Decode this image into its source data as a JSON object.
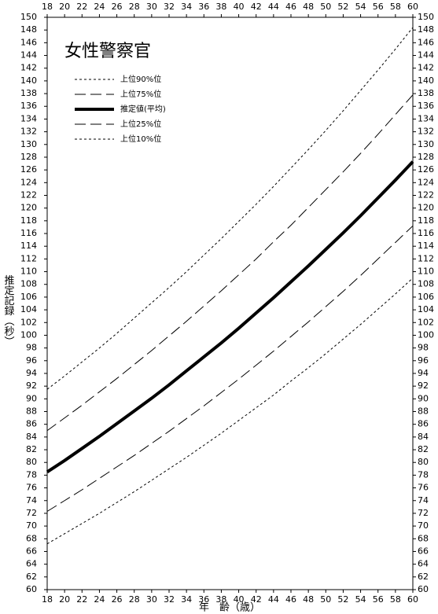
{
  "chart_data": {
    "type": "line",
    "title": "女性警察官",
    "x_label": "年　齢（歳）",
    "y_label": "推定記録（秒）",
    "x": [
      18,
      20,
      22,
      24,
      26,
      28,
      30,
      32,
      34,
      36,
      38,
      40,
      42,
      44,
      46,
      48,
      50,
      52,
      54,
      56,
      58,
      60
    ],
    "xlim": [
      18,
      60
    ],
    "xticks": [
      18,
      20,
      22,
      24,
      26,
      28,
      30,
      32,
      34,
      36,
      38,
      40,
      42,
      44,
      46,
      48,
      50,
      52,
      54,
      56,
      58,
      60
    ],
    "ylim": [
      60,
      150
    ],
    "yticks": [
      60,
      62,
      64,
      66,
      68,
      70,
      72,
      74,
      76,
      78,
      80,
      82,
      84,
      86,
      88,
      90,
      92,
      94,
      96,
      98,
      100,
      102,
      104,
      106,
      108,
      110,
      112,
      114,
      116,
      118,
      120,
      122,
      124,
      126,
      128,
      130,
      132,
      134,
      136,
      138,
      140,
      142,
      144,
      146,
      148,
      150
    ],
    "series": [
      {
        "name": "上位90%位",
        "color": "#000000",
        "style": "dotted",
        "values": [
          91.5,
          93.6,
          95.8,
          98.0,
          100.3,
          102.7,
          105.1,
          107.5,
          110.0,
          112.6,
          115.2,
          117.9,
          120.6,
          123.4,
          126.3,
          129.2,
          132.2,
          135.3,
          138.5,
          141.7,
          145.0,
          148.4
        ]
      },
      {
        "name": "上位75%位",
        "color": "#000000",
        "style": "dashed",
        "values": [
          85.0,
          87.0,
          89.0,
          91.1,
          93.2,
          95.4,
          97.6,
          99.9,
          102.2,
          104.6,
          107.0,
          109.5,
          112.0,
          114.7,
          117.3,
          120.1,
          122.9,
          125.7,
          128.6,
          131.6,
          134.7,
          137.8
        ]
      },
      {
        "name": "推定値(平均)",
        "color": "#000000",
        "style": "bold",
        "values": [
          78.5,
          80.3,
          82.2,
          84.1,
          86.1,
          88.1,
          90.1,
          92.2,
          94.4,
          96.6,
          98.8,
          101.1,
          103.5,
          105.9,
          108.4,
          110.9,
          113.5,
          116.1,
          118.8,
          121.6,
          124.4,
          127.3
        ]
      },
      {
        "name": "上位25%位",
        "color": "#000000",
        "style": "dashed",
        "values": [
          72.3,
          74.0,
          75.7,
          77.5,
          79.3,
          81.1,
          83.0,
          84.9,
          86.9,
          88.9,
          91.0,
          93.1,
          95.3,
          97.5,
          99.8,
          102.1,
          104.5,
          106.9,
          109.4,
          112.0,
          114.6,
          117.2
        ]
      },
      {
        "name": "上位10%位",
        "color": "#000000",
        "style": "dotted",
        "values": [
          67.2,
          68.8,
          70.4,
          72.0,
          73.7,
          75.4,
          77.2,
          79.0,
          80.8,
          82.7,
          84.6,
          86.6,
          88.6,
          90.6,
          92.8,
          94.9,
          97.1,
          99.4,
          101.7,
          104.1,
          106.5,
          109.0
        ]
      }
    ]
  }
}
